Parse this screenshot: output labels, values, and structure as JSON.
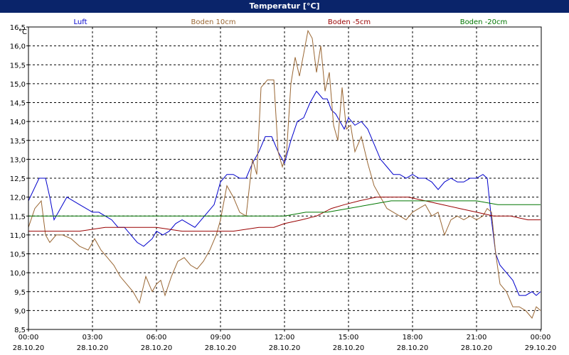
{
  "title": "Temperatur [°C]",
  "chart_data": {
    "type": "line",
    "title": "Temperatur [°C]",
    "ylabel": "°C",
    "ylim": [
      8.5,
      16.5
    ],
    "xlim": [
      0,
      24
    ],
    "yticks": [
      "8,5",
      "9,0",
      "9,5",
      "10,0",
      "10,5",
      "11,0",
      "11,5",
      "12,0",
      "12,5",
      "13,0",
      "13,5",
      "14,0",
      "14,5",
      "15,0",
      "15,5",
      "16,0",
      "16,5"
    ],
    "xticks": [
      {
        "time": "00:00",
        "date": "28.10.20"
      },
      {
        "time": "03:00",
        "date": "28.10.20"
      },
      {
        "time": "06:00",
        "date": "28.10.20"
      },
      {
        "time": "09:00",
        "date": "28.10.20"
      },
      {
        "time": "12:00",
        "date": "28.10.20"
      },
      {
        "time": "15:00",
        "date": "28.10.20"
      },
      {
        "time": "18:00",
        "date": "28.10.20"
      },
      {
        "time": "21:00",
        "date": "28.10.20"
      },
      {
        "time": "00:00",
        "date": "29.10.20"
      }
    ],
    "grid": true,
    "legend_position": "top",
    "series": [
      {
        "name": "Luft",
        "color": "#0000cc",
        "x": [
          0,
          0.5,
          0.8,
          1.0,
          1.2,
          1.5,
          1.8,
          2.1,
          2.4,
          2.7,
          3.0,
          3.3,
          3.6,
          3.9,
          4.2,
          4.5,
          4.8,
          5.1,
          5.4,
          5.6,
          5.8,
          6.0,
          6.3,
          6.6,
          6.9,
          7.2,
          7.5,
          7.8,
          8.1,
          8.4,
          8.7,
          9.0,
          9.3,
          9.6,
          9.9,
          10.2,
          10.5,
          10.8,
          11.1,
          11.4,
          11.7,
          12.0,
          12.3,
          12.6,
          12.9,
          13.2,
          13.5,
          13.8,
          14.0,
          14.2,
          14.4,
          14.6,
          14.8,
          15.0,
          15.3,
          15.6,
          15.9,
          16.2,
          16.5,
          16.8,
          17.1,
          17.4,
          17.7,
          18.0,
          18.3,
          18.6,
          18.9,
          19.2,
          19.5,
          19.8,
          20.1,
          20.4,
          20.7,
          21.0,
          21.3,
          21.5,
          21.7,
          21.9,
          22.1,
          22.4,
          22.7,
          23.0,
          23.3,
          23.6,
          23.8,
          24.0
        ],
        "y": [
          11.9,
          12.5,
          12.5,
          12.0,
          11.4,
          11.7,
          12.0,
          11.9,
          11.8,
          11.7,
          11.6,
          11.6,
          11.5,
          11.4,
          11.2,
          11.2,
          11.0,
          10.8,
          10.7,
          10.8,
          10.9,
          11.1,
          11.0,
          11.1,
          11.3,
          11.4,
          11.3,
          11.2,
          11.4,
          11.6,
          11.8,
          12.4,
          12.6,
          12.6,
          12.5,
          12.5,
          12.9,
          13.2,
          13.6,
          13.6,
          13.2,
          12.9,
          13.5,
          14.0,
          14.1,
          14.5,
          14.8,
          14.6,
          14.6,
          14.3,
          14.2,
          14.0,
          13.8,
          14.1,
          13.9,
          14.0,
          13.8,
          13.4,
          13.0,
          12.8,
          12.6,
          12.6,
          12.5,
          12.6,
          12.5,
          12.5,
          12.4,
          12.2,
          12.4,
          12.5,
          12.4,
          12.4,
          12.5,
          12.5,
          12.6,
          12.5,
          11.4,
          10.5,
          10.2,
          10.0,
          9.8,
          9.4,
          9.4,
          9.5,
          9.4,
          9.5
        ]
      },
      {
        "name": "Boden 10cm",
        "color": "#996633",
        "x": [
          0,
          0.3,
          0.6,
          0.8,
          1.0,
          1.3,
          1.6,
          2.0,
          2.4,
          2.8,
          3.1,
          3.4,
          3.7,
          4.0,
          4.3,
          4.6,
          4.9,
          5.2,
          5.5,
          5.8,
          6.0,
          6.2,
          6.4,
          6.7,
          7.0,
          7.3,
          7.6,
          7.9,
          8.2,
          8.5,
          8.8,
          9.0,
          9.3,
          9.6,
          9.9,
          10.2,
          10.5,
          10.7,
          10.9,
          11.2,
          11.5,
          11.7,
          11.9,
          12.1,
          12.3,
          12.5,
          12.7,
          12.9,
          13.1,
          13.3,
          13.5,
          13.7,
          13.9,
          14.1,
          14.3,
          14.5,
          14.7,
          14.9,
          15.1,
          15.3,
          15.6,
          15.9,
          16.2,
          16.5,
          16.8,
          17.1,
          17.4,
          17.7,
          18.0,
          18.3,
          18.6,
          18.9,
          19.2,
          19.5,
          19.8,
          20.1,
          20.4,
          20.7,
          21.0,
          21.3,
          21.5,
          21.7,
          21.9,
          22.1,
          22.4,
          22.7,
          23.0,
          23.3,
          23.6,
          23.8,
          24.0
        ],
        "y": [
          11.2,
          11.7,
          11.9,
          11.0,
          10.8,
          11.0,
          11.0,
          10.9,
          10.7,
          10.6,
          10.9,
          10.6,
          10.4,
          10.2,
          9.9,
          9.7,
          9.5,
          9.2,
          9.9,
          9.5,
          9.7,
          9.8,
          9.4,
          9.9,
          10.3,
          10.4,
          10.2,
          10.1,
          10.3,
          10.6,
          11.0,
          11.4,
          12.3,
          12.0,
          11.6,
          11.5,
          13.0,
          12.6,
          14.9,
          15.1,
          15.1,
          13.2,
          12.8,
          13.2,
          15.0,
          15.7,
          15.2,
          15.8,
          16.4,
          16.2,
          15.3,
          16.0,
          14.8,
          15.3,
          13.9,
          13.5,
          14.9,
          13.8,
          13.9,
          13.2,
          13.6,
          12.9,
          12.3,
          12.0,
          11.7,
          11.6,
          11.5,
          11.4,
          11.6,
          11.7,
          11.8,
          11.5,
          11.6,
          11.0,
          11.4,
          11.5,
          11.4,
          11.5,
          11.4,
          11.5,
          11.7,
          11.6,
          10.5,
          9.7,
          9.5,
          9.1,
          9.1,
          9.0,
          8.8,
          9.1,
          9.0
        ]
      },
      {
        "name": "Boden -5cm",
        "color": "#990000",
        "x": [
          0,
          1.2,
          2.4,
          3.6,
          4.8,
          6.0,
          7.2,
          8.4,
          9.6,
          10.8,
          11.5,
          12.0,
          12.8,
          13.5,
          14.2,
          14.8,
          15.5,
          16.3,
          17.0,
          17.8,
          18.6,
          19.4,
          20.2,
          21.0,
          21.8,
          22.6,
          23.4,
          24.0
        ],
        "y": [
          11.1,
          11.1,
          11.1,
          11.2,
          11.2,
          11.2,
          11.1,
          11.1,
          11.1,
          11.2,
          11.2,
          11.3,
          11.4,
          11.5,
          11.7,
          11.8,
          11.9,
          12.0,
          12.0,
          12.0,
          11.9,
          11.8,
          11.7,
          11.6,
          11.5,
          11.5,
          11.4,
          11.4
        ]
      },
      {
        "name": "Boden -20cm",
        "color": "#007700",
        "x": [
          0,
          2,
          4,
          6,
          8,
          10,
          12,
          13,
          14,
          15,
          16,
          17,
          18,
          19,
          20,
          21,
          22,
          23,
          24
        ],
        "y": [
          11.5,
          11.5,
          11.5,
          11.5,
          11.5,
          11.5,
          11.5,
          11.6,
          11.6,
          11.7,
          11.8,
          11.9,
          11.9,
          11.9,
          11.9,
          11.9,
          11.8,
          11.8,
          11.8
        ]
      }
    ]
  }
}
